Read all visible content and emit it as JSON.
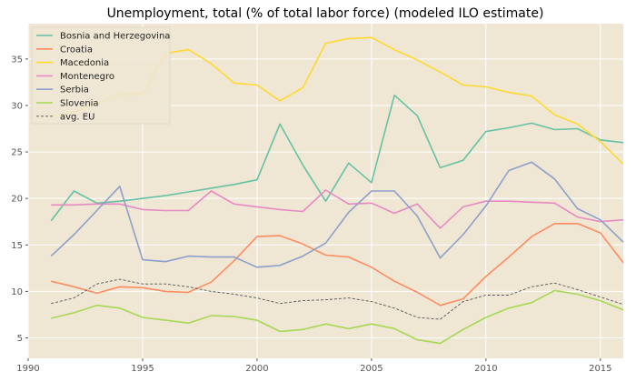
{
  "chart_data": {
    "type": "line",
    "title": "Unemployment, total (% of total labor force) (modeled ILO estimate)",
    "xlabel": "",
    "ylabel": "",
    "xlim": [
      1990,
      2016
    ],
    "ylim": [
      2.8,
      38.8
    ],
    "xticks": [
      1990,
      1995,
      2000,
      2005,
      2010,
      2015
    ],
    "yticks": [
      5,
      10,
      15,
      20,
      25,
      30,
      35
    ],
    "grid": true,
    "background": "#efe6d4",
    "legend_position": "top-left",
    "x": [
      1991,
      1992,
      1993,
      1994,
      1995,
      1996,
      1997,
      1998,
      1999,
      2000,
      2001,
      2002,
      2003,
      2004,
      2005,
      2006,
      2007,
      2008,
      2009,
      2010,
      2011,
      2012,
      2013,
      2014,
      2015,
      2016
    ],
    "series": [
      {
        "name": "Bosnia and Herzegovina",
        "color": "#66c2a5",
        "dashed": false,
        "values": [
          17.6,
          20.8,
          19.5,
          19.7,
          20.0,
          20.3,
          20.7,
          21.1,
          21.5,
          22.0,
          28.0,
          23.6,
          19.7,
          23.8,
          21.7,
          31.1,
          28.9,
          23.3,
          24.1,
          27.2,
          27.6,
          28.1,
          27.4,
          27.5,
          26.3,
          26.0
        ]
      },
      {
        "name": "Croatia",
        "color": "#fc8d62",
        "dashed": false,
        "values": [
          11.1,
          10.5,
          9.8,
          10.5,
          10.4,
          10.0,
          9.9,
          11.0,
          13.3,
          15.9,
          16.0,
          15.1,
          13.9,
          13.7,
          12.6,
          11.1,
          9.9,
          8.5,
          9.2,
          11.6,
          13.7,
          15.9,
          17.3,
          17.3,
          16.3,
          13.1
        ]
      },
      {
        "name": "Macedonia",
        "color": "#ffd92f",
        "dashed": false,
        "values": [
          28.8,
          29.3,
          30.2,
          31.2,
          31.2,
          35.6,
          36.0,
          34.5,
          32.4,
          32.2,
          30.5,
          31.9,
          36.7,
          37.2,
          37.3,
          36.0,
          34.9,
          33.6,
          32.2,
          32.0,
          31.4,
          31.0,
          29.0,
          28.0,
          26.1,
          23.7
        ]
      },
      {
        "name": "Montenegro",
        "color": "#e78ac3",
        "dashed": false,
        "values": [
          19.3,
          19.3,
          19.4,
          19.4,
          18.8,
          18.7,
          18.7,
          20.8,
          19.4,
          19.1,
          18.8,
          18.6,
          20.9,
          19.4,
          19.5,
          18.4,
          19.4,
          16.8,
          19.1,
          19.7,
          19.7,
          19.6,
          19.5,
          18.0,
          17.5,
          17.7
        ]
      },
      {
        "name": "Serbia",
        "color": "#8da0cb",
        "dashed": false,
        "values": [
          13.8,
          16.1,
          18.7,
          21.3,
          13.4,
          13.2,
          13.8,
          13.7,
          13.7,
          12.6,
          12.8,
          13.8,
          15.2,
          18.5,
          20.8,
          20.8,
          18.1,
          13.6,
          16.1,
          19.2,
          23.0,
          23.9,
          22.1,
          18.9,
          17.7,
          15.3
        ]
      },
      {
        "name": "Slovenia",
        "color": "#a6d854",
        "dashed": false,
        "values": [
          7.1,
          7.7,
          8.5,
          8.2,
          7.2,
          6.9,
          6.6,
          7.4,
          7.3,
          6.9,
          5.7,
          5.9,
          6.5,
          6.0,
          6.5,
          6.0,
          4.8,
          4.4,
          5.9,
          7.2,
          8.2,
          8.8,
          10.1,
          9.7,
          9.0,
          8.0
        ]
      },
      {
        "name": "avg. EU",
        "color": "#555555",
        "dashed": true,
        "values": [
          8.7,
          9.3,
          10.8,
          11.3,
          10.8,
          10.8,
          10.5,
          10.0,
          9.7,
          9.3,
          8.7,
          9.0,
          9.1,
          9.3,
          8.9,
          8.2,
          7.2,
          7.0,
          8.9,
          9.6,
          9.6,
          10.5,
          10.9,
          10.2,
          9.4,
          8.6
        ]
      }
    ]
  }
}
